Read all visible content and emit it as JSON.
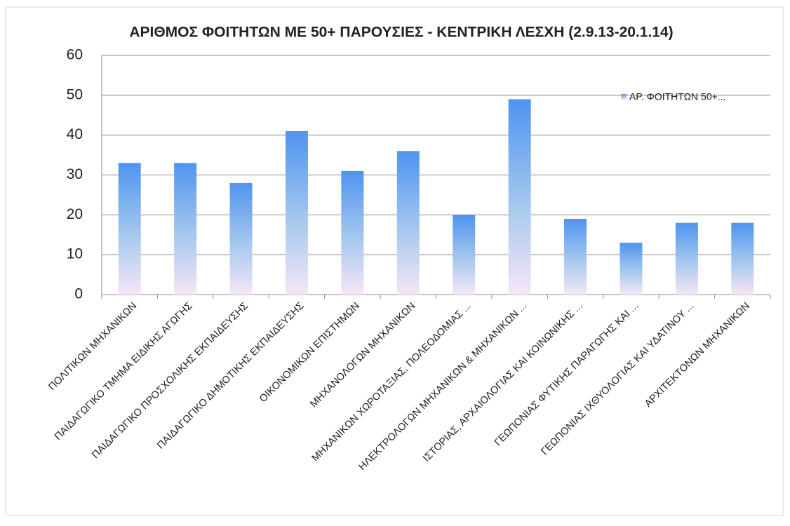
{
  "chart_data": {
    "type": "bar",
    "title": "ΑΡΙΘΜΟΣ ΦΟΙΤΗΤΩΝ ΜΕ 50+ ΠΑΡΟΥΣΙΕΣ - ΚΕΝΤΡΙΚΗ ΛΕΣΧΗ (2.9.13-20.1.14)",
    "categories": [
      "ΠΟΛΙΤΙΚΩΝ ΜΗΧΑΝΙΚΩΝ",
      "ΠΑΙΔΑΓΩΓΙΚΟ ΤΜΗΜΑ ΕΙΔΙΚΗΣ ΑΓΩΓΗΣ",
      "ΠΑΙΔΑΓΩΓΙΚΟ ΠΡΟΣΧΟΛΙΚΗΣ ΕΚΠΑΙΔΕΥΣΗΣ",
      "ΠΑΙΔΑΓΩΓΙΚΟ ΔΗΜΟΤΙΚΗΣ ΕΚΠΑΙΔΕΥΣΗΣ",
      "ΟΙΚΟΝΟΜΙΚΩΝ ΕΠΙΣΤΗΜΩΝ",
      "ΜΗΧΑΝΟΛΟΓΩΝ ΜΗΧΑΝΙΚΩΝ",
      "ΜΗΧΑΝΙΚΩΝ ΧΩΡΟΤΑΞΙΑΣ, ΠΟΛΕΟΔΟΜΙΑΣ ...",
      "ΗΛΕΚΤΡΟΛΟΓΩΝ ΜΗΧΑΝΙΚΩΝ & ΜΗΧΑΝΙΚΩΝ ...",
      "ΙΣΤΟΡΙΑΣ, ΑΡΧΑΙΟΛΟΓΙΑΣ ΚΑΙ ΚΟΙΝΩΝΙΚΗΣ ...",
      "ΓΕΩΠΟΝΙΑΣ ΦΥΤΙΚΗΣ ΠΑΡΑΓΩΓΗΣ ΚΑΙ ...",
      "ΓΕΩΠΟΝΙΑΣ ΙΧΘΥΟΛΟΓΙΑΣ ΚΑΙ ΥΔΑΤΙΝΟΥ ...",
      "ΑΡΧΙΤΕΚΤΟΝΩΝ ΜΗΧΑΝΙΚΩΝ"
    ],
    "series": [
      {
        "name": "ΑΡ. ΦΟΙΤΗΤΩΝ 50+...",
        "color": "#4f94ef",
        "values": [
          33,
          33,
          28,
          41,
          31,
          36,
          20,
          49,
          19,
          13,
          18,
          18
        ]
      }
    ],
    "ylim": [
      0,
      60
    ],
    "yticks": [
      0,
      10,
      20,
      30,
      40,
      50,
      60
    ],
    "grid": true,
    "legend": "top-right"
  }
}
